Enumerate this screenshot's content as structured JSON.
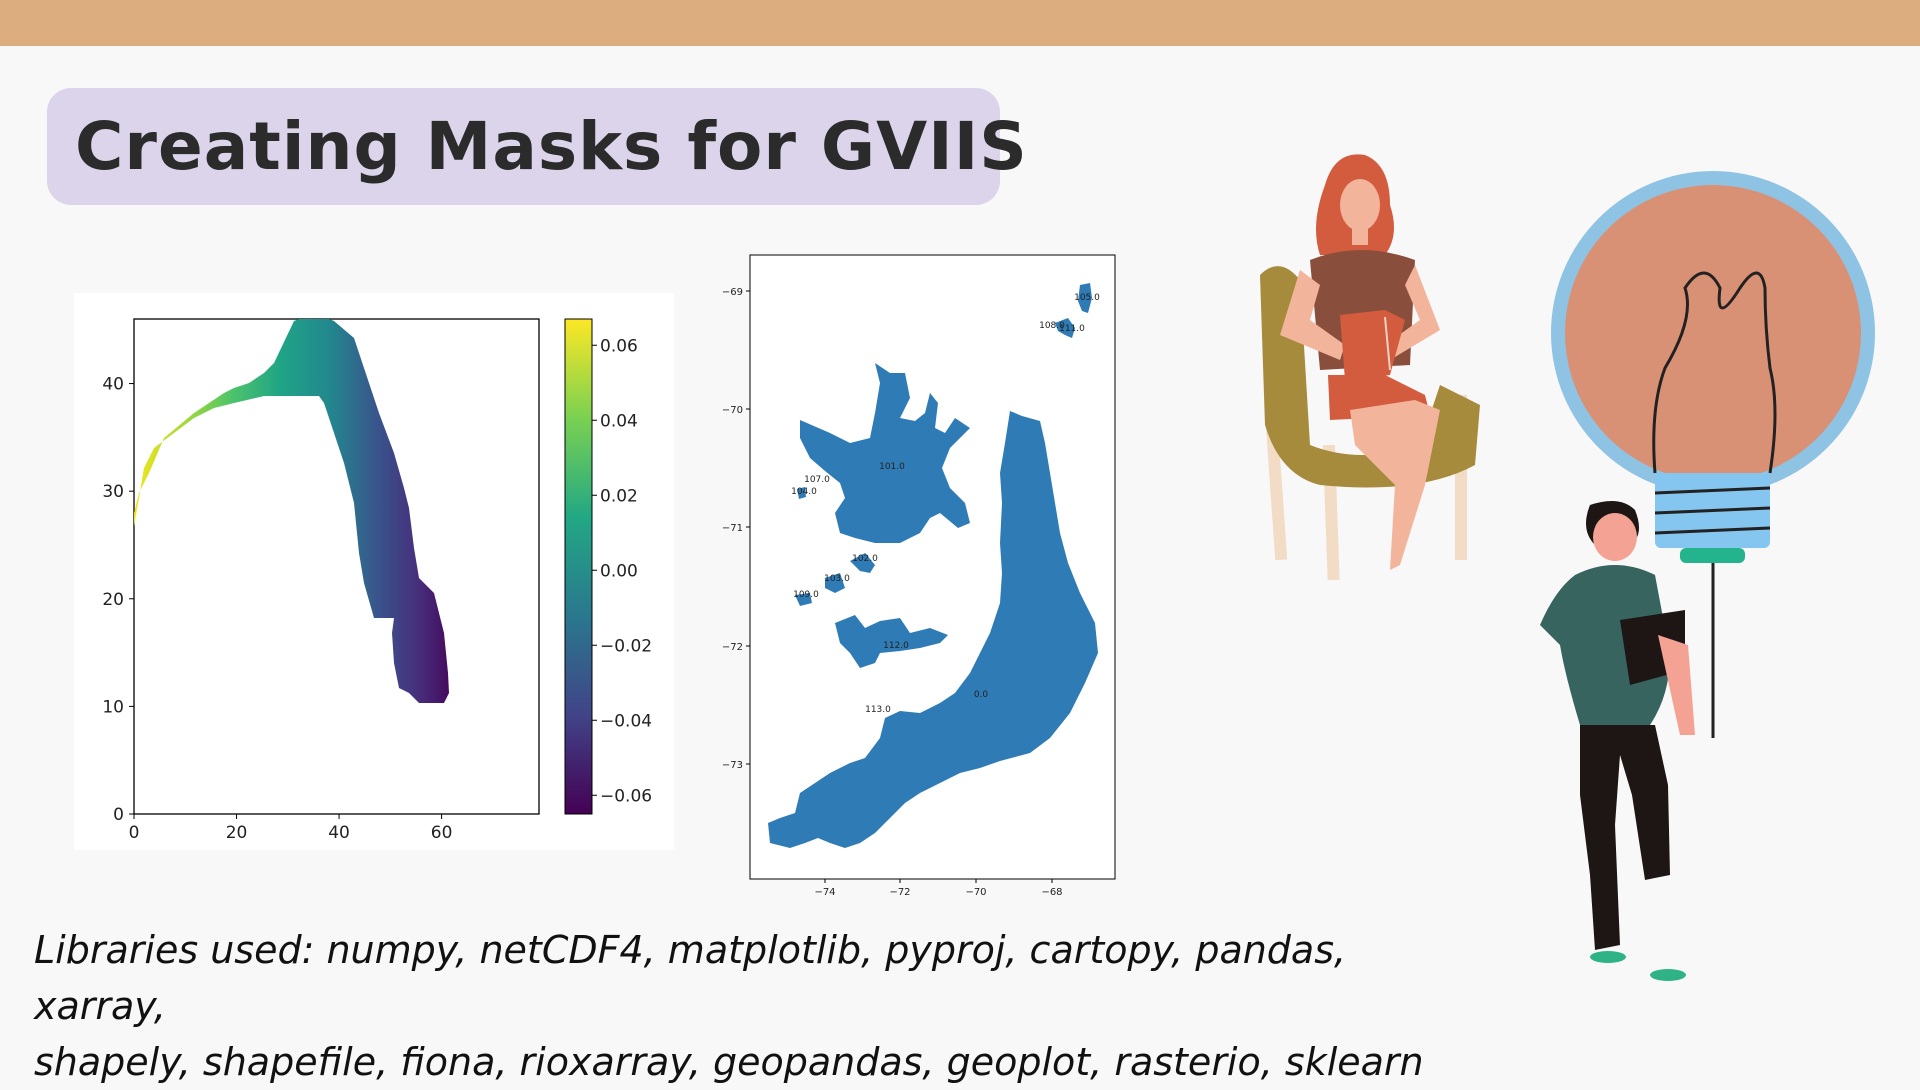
{
  "slide": {
    "title": "Creating Masks for GVIIS",
    "caption_line1": "Libraries used: numpy, netCDF4, matplotlib, pyproj, cartopy, pandas, xarray,",
    "caption_line2": "shapely, shapefile, fiona, rioxarray, geopandas, geoplot, rasterio, sklearn",
    "colors": {
      "top_bar": "#dcae7f",
      "title_pill": "#dcd4ea",
      "background": "#f8f8f8",
      "map_fill": "#2f7bb6"
    }
  },
  "chart_data": [
    {
      "type": "heatmap",
      "x_ticks": [
        "0",
        "20",
        "40",
        "60"
      ],
      "y_ticks": [
        "0",
        "10",
        "20",
        "30",
        "40"
      ],
      "xlim": [
        0,
        79
      ],
      "ylim": [
        0,
        46
      ],
      "colormap": "viridis",
      "colorbar_ticks": [
        "0.06",
        "0.04",
        "0.02",
        "0.00",
        "−0.02",
        "−0.04",
        "−0.06"
      ],
      "colorbar_range": [
        -0.065,
        0.067
      ]
    },
    {
      "type": "map",
      "x_ticks": [
        "−74",
        "−72",
        "−70",
        "−68"
      ],
      "y_ticks": [
        "−69",
        "−70",
        "−71",
        "−72",
        "−73"
      ],
      "labels": [
        "105.0",
        "108.0",
        "111.0",
        "101.0",
        "107.0",
        "104.0",
        "102.0",
        "103.0",
        "109.0",
        "112.0",
        "0.0",
        "113.0"
      ]
    }
  ]
}
